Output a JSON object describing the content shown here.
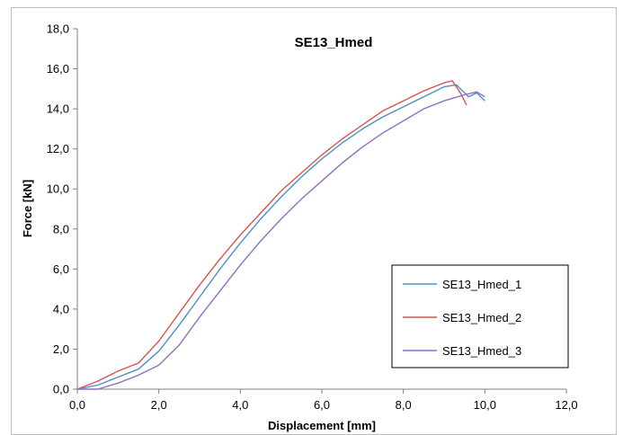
{
  "chart_data": {
    "type": "line",
    "title": "SE13_Hmed",
    "xlabel": "Displacement [mm]",
    "ylabel": "Force [kN]",
    "xlim": [
      0,
      12
    ],
    "ylim": [
      0,
      18
    ],
    "x_ticks": [
      "0,0",
      "2,0",
      "4,0",
      "6,0",
      "8,0",
      "10,0",
      "12,0"
    ],
    "y_ticks": [
      "0,0",
      "2,0",
      "4,0",
      "6,0",
      "8,0",
      "10,0",
      "12,0",
      "14,0",
      "16,0",
      "18,0"
    ],
    "grid": false,
    "legend_position": "right",
    "series": [
      {
        "name": "SE13_Hmed_1",
        "color": "#4a90c8",
        "points": [
          [
            0,
            0
          ],
          [
            0.5,
            0.2
          ],
          [
            1,
            0.6
          ],
          [
            1.5,
            1.0
          ],
          [
            2,
            1.9
          ],
          [
            2.5,
            3.2
          ],
          [
            3,
            4.6
          ],
          [
            3.5,
            6.0
          ],
          [
            4,
            7.3
          ],
          [
            4.5,
            8.5
          ],
          [
            5,
            9.6
          ],
          [
            5.5,
            10.6
          ],
          [
            6,
            11.5
          ],
          [
            6.5,
            12.3
          ],
          [
            7,
            13.0
          ],
          [
            7.5,
            13.6
          ],
          [
            8,
            14.1
          ],
          [
            8.5,
            14.6
          ],
          [
            9,
            15.1
          ],
          [
            9.3,
            15.2
          ],
          [
            9.6,
            14.6
          ],
          [
            9.8,
            14.8
          ],
          [
            10,
            14.4
          ]
        ]
      },
      {
        "name": "SE13_Hmed_2",
        "color": "#d9534f",
        "points": [
          [
            0,
            0
          ],
          [
            0.5,
            0.4
          ],
          [
            1,
            0.9
          ],
          [
            1.5,
            1.3
          ],
          [
            2,
            2.4
          ],
          [
            2.5,
            3.8
          ],
          [
            3,
            5.2
          ],
          [
            3.5,
            6.5
          ],
          [
            4,
            7.7
          ],
          [
            4.5,
            8.8
          ],
          [
            5,
            9.9
          ],
          [
            5.5,
            10.8
          ],
          [
            6,
            11.7
          ],
          [
            6.5,
            12.5
          ],
          [
            7,
            13.2
          ],
          [
            7.5,
            13.9
          ],
          [
            8,
            14.4
          ],
          [
            8.5,
            14.9
          ],
          [
            9,
            15.3
          ],
          [
            9.2,
            15.4
          ],
          [
            9.4,
            14.8
          ],
          [
            9.55,
            14.2
          ]
        ]
      },
      {
        "name": "SE13_Hmed_3",
        "color": "#8e6fc1",
        "points": [
          [
            0,
            0
          ],
          [
            0.5,
            0
          ],
          [
            1,
            0.3
          ],
          [
            1.5,
            0.7
          ],
          [
            2,
            1.2
          ],
          [
            2.5,
            2.2
          ],
          [
            3,
            3.6
          ],
          [
            3.5,
            4.9
          ],
          [
            4,
            6.2
          ],
          [
            4.5,
            7.4
          ],
          [
            5,
            8.5
          ],
          [
            5.5,
            9.5
          ],
          [
            6,
            10.4
          ],
          [
            6.5,
            11.3
          ],
          [
            7,
            12.1
          ],
          [
            7.5,
            12.8
          ],
          [
            8,
            13.4
          ],
          [
            8.5,
            14.0
          ],
          [
            9,
            14.4
          ],
          [
            9.5,
            14.7
          ],
          [
            9.8,
            14.85
          ],
          [
            10,
            14.6
          ]
        ]
      }
    ]
  }
}
